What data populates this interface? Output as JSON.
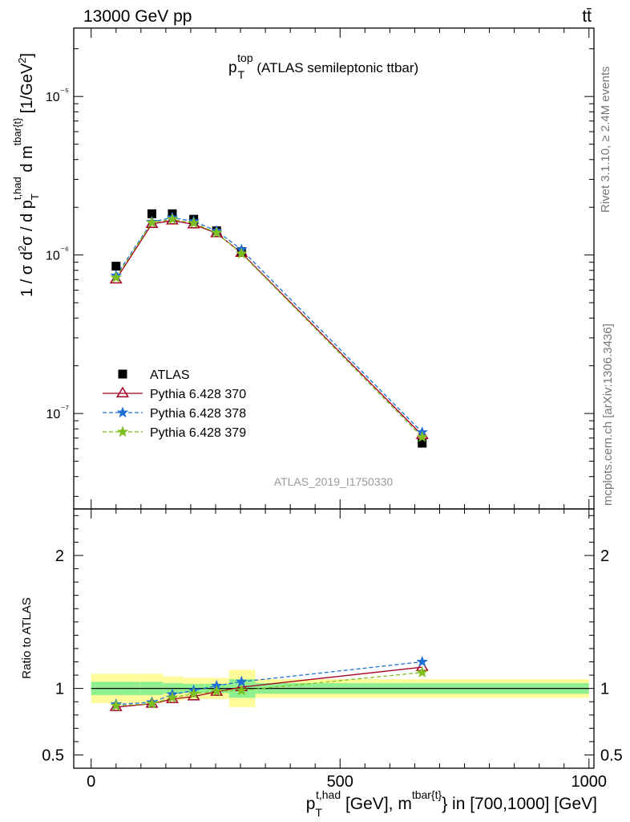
{
  "header": {
    "left": "13000 GeV pp",
    "right": "tt̄"
  },
  "side_labels": {
    "rivet": "Rivet 3.1.10, ≥ 2.4M events",
    "mcplots": "mcplots.cern.ch [arXiv:1306.3436]"
  },
  "chart_data": [
    {
      "type": "scatter",
      "panel": "main",
      "title": {
        "base": "p",
        "sub": "T",
        "sup": "top",
        "rest": " (ATLAS semileptonic ttbar)"
      },
      "analysis_id": "ATLAS_2019_I1750330",
      "ylabel": "1 / σ d²σ / d p_T^{t,had} d m^{tbar{t}} [1/GeV²]",
      "yscale": "log",
      "ylim": [
        2.5e-08,
        2.7e-05
      ],
      "xlim": [
        -35,
        1010
      ],
      "y_tick_labels": [
        "10⁻⁷",
        "10⁻⁶",
        "10⁻⁵"
      ],
      "legend_position": "lower-left",
      "x": [
        50,
        122,
        163,
        206,
        252,
        302,
        665
      ],
      "series": [
        {
          "name": "ATLAS",
          "color": "#000000",
          "marker": "square",
          "line": "none",
          "values": [
            8.5e-07,
            1.82e-06,
            1.82e-06,
            1.68e-06,
            1.42e-06,
            1.05e-06,
            6.5e-08
          ]
        },
        {
          "name": "Pythia 6.428 370",
          "color": "#a50021",
          "marker": "open-triangle",
          "line": "solid",
          "values": [
            7e-07,
            1.57e-06,
            1.65e-06,
            1.56e-06,
            1.37e-06,
            1.03e-06,
            7.3e-08
          ]
        },
        {
          "name": "Pythia 6.428 378",
          "color": "#1f6fd6",
          "marker": "star",
          "line": "dashed",
          "values": [
            7.4e-07,
            1.62e-06,
            1.72e-06,
            1.63e-06,
            1.42e-06,
            1.08e-06,
            7.6e-08
          ]
        },
        {
          "name": "Pythia 6.428 379",
          "color": "#7fbf1f",
          "marker": "star",
          "line": "dashed",
          "values": [
            7.2e-07,
            1.6e-06,
            1.68e-06,
            1.59e-06,
            1.38e-06,
            1.02e-06,
            7.1e-08
          ]
        }
      ]
    },
    {
      "type": "line",
      "panel": "ratio",
      "ylabel": "Ratio to ATLAS",
      "xlabel": "p_T^{t,had} [GeV], m^{tbar{t}} in [700,1000] [GeV]",
      "ylim": [
        0.4,
        2.35
      ],
      "xlim": [
        -35,
        1010
      ],
      "y_ticks": [
        0.5,
        1,
        2
      ],
      "y_tick_labels": [
        "0.5",
        "1",
        "2"
      ],
      "x_ticks": [
        0,
        500,
        1000
      ],
      "x_tick_labels": [
        "0",
        "500",
        "1000"
      ],
      "band_bins": [
        {
          "x": [
            0,
            100
          ],
          "inner": [
            0.95,
            1.05
          ],
          "outer": [
            0.89,
            1.11
          ]
        },
        {
          "x": [
            100,
            145
          ],
          "inner": [
            0.95,
            1.05
          ],
          "outer": [
            0.89,
            1.11
          ]
        },
        {
          "x": [
            145,
            185
          ],
          "inner": [
            0.96,
            1.04
          ],
          "outer": [
            0.91,
            1.09
          ]
        },
        {
          "x": [
            185,
            228
          ],
          "inner": [
            0.965,
            1.035
          ],
          "outer": [
            0.92,
            1.08
          ]
        },
        {
          "x": [
            228,
            277
          ],
          "inner": [
            0.965,
            1.035
          ],
          "outer": [
            0.92,
            1.08
          ]
        },
        {
          "x": [
            277,
            330
          ],
          "inner": [
            0.93,
            1.07
          ],
          "outer": [
            0.86,
            1.14
          ]
        },
        {
          "x": [
            330,
            1000
          ],
          "inner": [
            0.96,
            1.04
          ],
          "outer": [
            0.93,
            1.07
          ]
        }
      ],
      "x": [
        50,
        122,
        163,
        206,
        252,
        302,
        665
      ],
      "series": [
        {
          "name": "Pythia 6.428 370",
          "color": "#a50021",
          "marker": "open-triangle",
          "line": "solid",
          "values": [
            0.86,
            0.885,
            0.92,
            0.94,
            0.975,
            1.01,
            1.16
          ]
        },
        {
          "name": "Pythia 6.428 378",
          "color": "#1f6fd6",
          "marker": "star",
          "line": "dashed",
          "values": [
            0.88,
            0.895,
            0.955,
            0.985,
            1.02,
            1.05,
            1.2
          ]
        },
        {
          "name": "Pythia 6.428 379",
          "color": "#7fbf1f",
          "marker": "star",
          "line": "dashed",
          "values": [
            0.87,
            0.885,
            0.93,
            0.96,
            0.98,
            0.985,
            1.12
          ]
        }
      ],
      "band_colors": {
        "inner": "#90f090",
        "outer": "#fffb9a"
      }
    }
  ]
}
